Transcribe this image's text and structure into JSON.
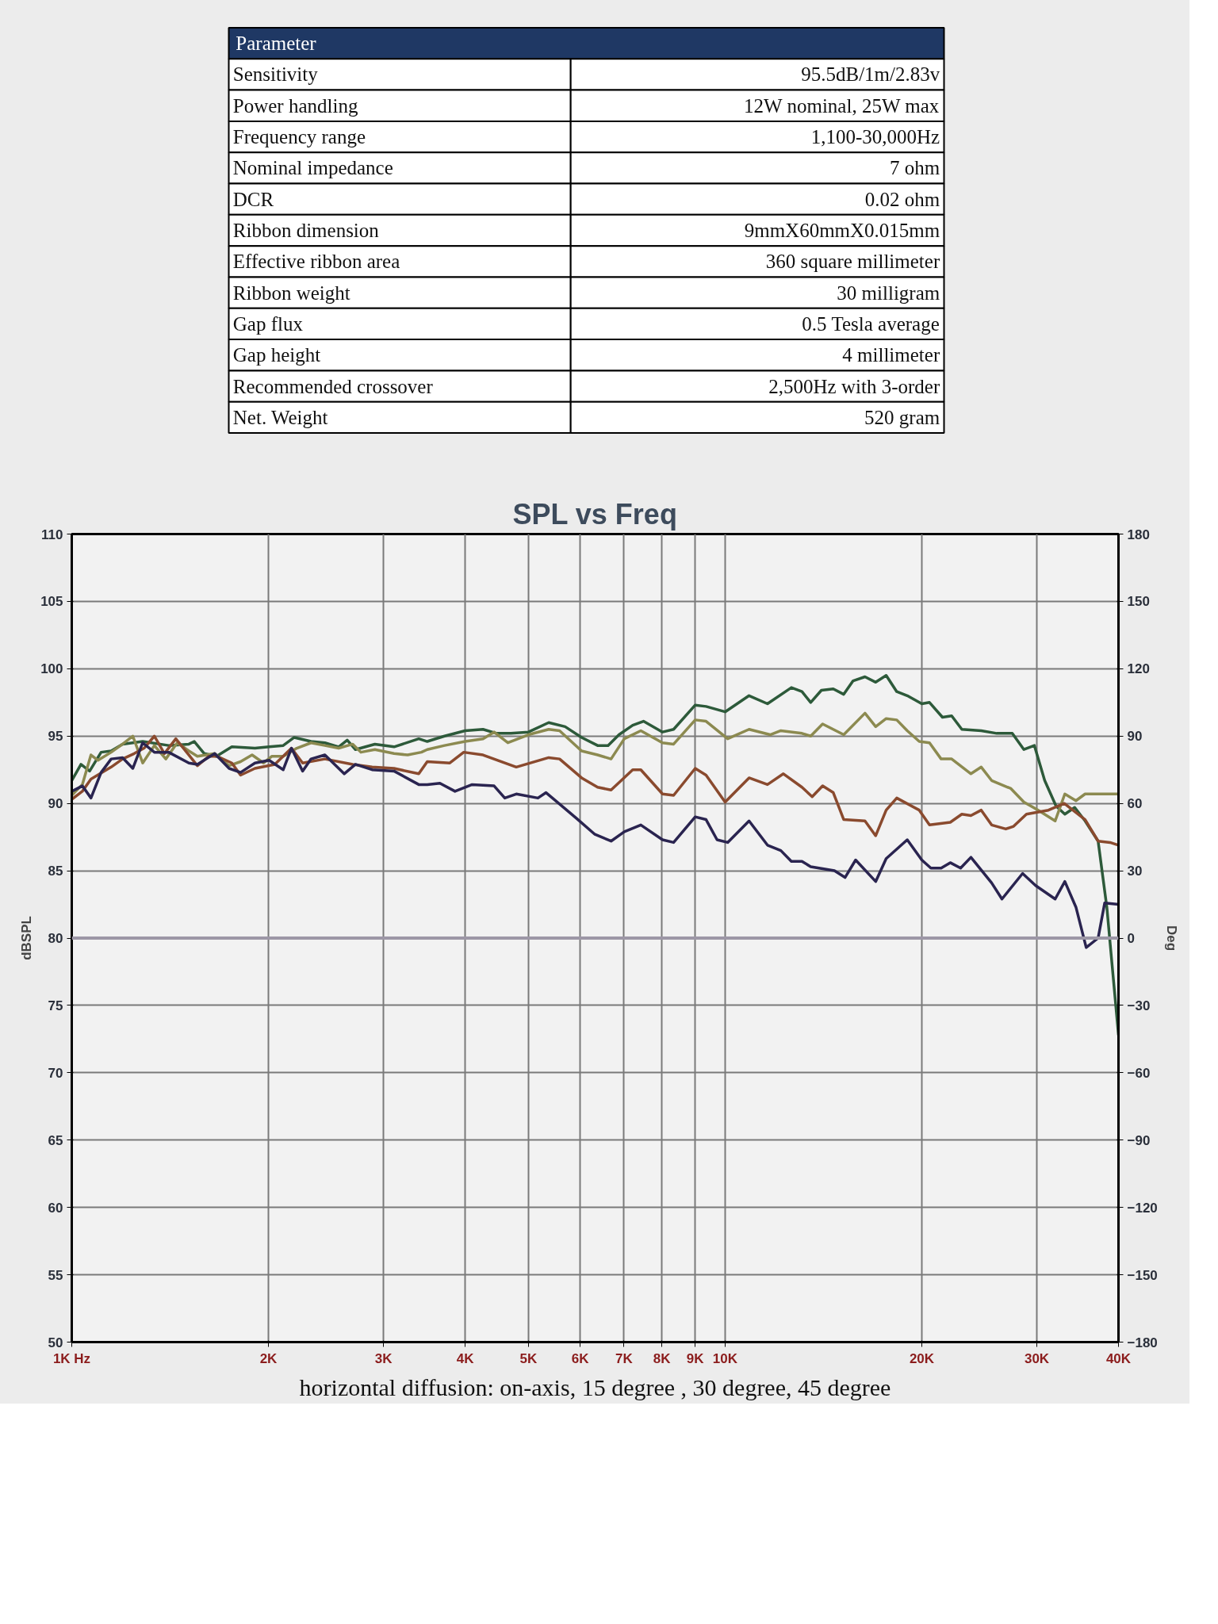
{
  "chart_data": [
    {
      "type": "other",
      "annotations": [
        "Parameter",
        "Sensitivity",
        "95.5dB/1m/2.83v",
        "Power handling",
        "12W nominal, 25W max",
        "Frequency range",
        "1,100-30,000Hz",
        "Nominal impedance",
        "7 ohm",
        "DCR",
        "0.02 ohm",
        "Ribbon dimension",
        "9mmX60mmX0.015mm",
        "Effective ribbon area",
        "360 square millimeter",
        "Ribbon weight",
        "30 milligram",
        "Gap flux",
        "0.5 Tesla average",
        "Gap height",
        "4 millimeter",
        "Recommended crossover",
        "2,500Hz with 3-order",
        "Net. Weight",
        "520 gram"
      ]
    },
    {
      "type": "line",
      "title": "SPL vs Freq",
      "ylabel": "dBSPL",
      "y2label": "Deg",
      "annotations": [
        "horizontal diffusion: on-axis, 15 degree , 30 degree, 45 degree"
      ],
      "log": "x",
      "grid": true,
      "xlim": [
        1000,
        40000
      ],
      "xticks": [
        {
          "value": 1000,
          "label": "1K Hz"
        },
        {
          "value": 2000,
          "label": "2K"
        },
        {
          "value": 3000,
          "label": "3K"
        },
        {
          "value": 4000,
          "label": "4K"
        },
        {
          "value": 5000,
          "label": "5K"
        },
        {
          "value": 6000,
          "label": "6K"
        },
        {
          "value": 7000,
          "label": "7K"
        },
        {
          "value": 8000,
          "label": "8K"
        },
        {
          "value": 9000,
          "label": "9K"
        },
        {
          "value": 10000,
          "label": "10K"
        },
        {
          "value": 20000,
          "label": "20K"
        },
        {
          "value": 30000,
          "label": "30K"
        },
        {
          "value": 40000,
          "label": "40K"
        }
      ],
      "ylim": [
        50,
        110
      ],
      "yticks": [
        50,
        55,
        60,
        65,
        70,
        75,
        80,
        85,
        90,
        95,
        100,
        105,
        110
      ],
      "y2lim": [
        -180,
        180
      ],
      "y2ticks": [
        -180,
        -150,
        -120,
        -90,
        -60,
        -30,
        0,
        30,
        60,
        90,
        120,
        150,
        180
      ],
      "ref_lines": [
        {
          "axis": "y2",
          "value": 0,
          "color": "#9d97a6"
        }
      ],
      "series": [
        {
          "color": "#2d5a3a",
          "x": [
            1000,
            1033,
            1065,
            1109,
            1149,
            1196,
            1284,
            1407,
            1511,
            1540,
            1595,
            1665,
            1758,
            1907,
            2005,
            2107,
            2190,
            2324,
            2440,
            2562,
            2640,
            2718,
            2910,
            3114,
            3397,
            3500,
            3720,
            4000,
            4260,
            4470,
            4700,
            5000,
            5370,
            5690,
            6030,
            6380,
            6620,
            6880,
            7220,
            7500,
            8020,
            8340,
            9000,
            9350,
            10000,
            10880,
            11610,
            12630,
            13110,
            13520,
            14040,
            14640,
            15190,
            15700,
            16370,
            17000,
            17640,
            18310,
            19000,
            20000,
            20550,
            21510,
            22220,
            23030,
            24660,
            26050,
            27510,
            28660,
            29740,
            30840,
            32100,
            33110,
            34280,
            35560,
            37230,
            38390,
            40000
          ],
          "values": [
            91.7,
            92.9,
            92.4,
            93.8,
            93.9,
            94.4,
            94.6,
            94.3,
            94.4,
            94.6,
            93.7,
            93.5,
            94.2,
            94.1,
            94.2,
            94.3,
            94.9,
            94.6,
            94.5,
            94.2,
            94.7,
            94.0,
            94.4,
            94.2,
            94.8,
            94.6,
            95.0,
            95.4,
            95.5,
            95.2,
            95.2,
            95.3,
            96.0,
            95.7,
            94.9,
            94.3,
            94.3,
            95.1,
            95.8,
            96.1,
            95.3,
            95.5,
            97.3,
            97.2,
            96.8,
            98.0,
            97.4,
            98.6,
            98.3,
            97.5,
            98.4,
            98.5,
            98.1,
            99.1,
            99.4,
            99.0,
            99.5,
            98.3,
            98.0,
            97.4,
            97.5,
            96.4,
            96.5,
            95.5,
            95.4,
            95.2,
            95.2,
            94.0,
            94.3,
            91.7,
            89.8,
            89.2,
            89.7,
            88.7,
            87.2,
            82.3,
            72.8
          ]
        },
        {
          "color": "#8c8a50",
          "x": [
            1000,
            1038,
            1070,
            1097,
            1149,
            1196,
            1240,
            1284,
            1338,
            1393,
            1450,
            1511,
            1557,
            1655,
            1741,
            1813,
            1888,
            1966,
            2025,
            2107,
            2210,
            2324,
            2440,
            2562,
            2692,
            2770,
            2910,
            3114,
            3267,
            3428,
            3500,
            3720,
            4000,
            4260,
            4430,
            4650,
            5000,
            5370,
            5580,
            6030,
            6380,
            6690,
            7010,
            7430,
            8020,
            8340,
            9000,
            9350,
            10090,
            10880,
            11720,
            12170,
            13110,
            13520,
            14100,
            15190,
            16370,
            17000,
            17640,
            18310,
            19000,
            19820,
            20550,
            21410,
            22220,
            23780,
            24660,
            25580,
            27380,
            28660,
            30140,
            32000,
            33110,
            34430,
            35560,
            40000
          ],
          "values": [
            90.6,
            91.4,
            93.6,
            93.2,
            93.8,
            94.4,
            95.0,
            93.0,
            94.3,
            93.3,
            94.5,
            93.9,
            93.5,
            93.7,
            92.8,
            93.1,
            93.6,
            93.0,
            93.5,
            93.5,
            94.1,
            94.5,
            94.3,
            94.1,
            94.4,
            93.8,
            94.0,
            93.7,
            93.6,
            93.8,
            94.0,
            94.3,
            94.6,
            94.8,
            95.3,
            94.5,
            95.1,
            95.5,
            95.4,
            93.9,
            93.6,
            93.3,
            94.8,
            95.4,
            94.5,
            94.4,
            96.2,
            96.1,
            94.8,
            95.5,
            95.1,
            95.4,
            95.2,
            95.0,
            95.9,
            95.1,
            96.7,
            95.7,
            96.3,
            96.2,
            95.4,
            94.6,
            94.5,
            93.3,
            93.3,
            92.2,
            92.7,
            91.7,
            91.1,
            90.1,
            89.5,
            88.7,
            90.7,
            90.2,
            90.7,
            90.7
          ]
        },
        {
          "color": "#8a4a2e",
          "x": [
            1000,
            1038,
            1070,
            1149,
            1196,
            1246,
            1290,
            1338,
            1386,
            1443,
            1511,
            1557,
            1621,
            1670,
            1758,
            1813,
            1907,
            2045,
            2169,
            2256,
            2440,
            2692,
            2882,
            3114,
            3397,
            3500,
            3790,
            3980,
            4260,
            4790,
            5370,
            5580,
            6030,
            6380,
            6690,
            7220,
            7430,
            8020,
            8340,
            9000,
            9350,
            10000,
            10880,
            11610,
            12280,
            13110,
            13590,
            14100,
            14640,
            15190,
            16370,
            17000,
            17640,
            18310,
            19820,
            20550,
            22110,
            23030,
            23780,
            24660,
            25580,
            26890,
            27640,
            28920,
            31250,
            33040,
            35560,
            37230,
            38830,
            40000
          ],
          "values": [
            90.3,
            90.9,
            91.8,
            92.7,
            93.3,
            93.7,
            94.1,
            95.0,
            93.7,
            94.8,
            93.6,
            92.8,
            93.5,
            93.5,
            93.0,
            92.1,
            92.6,
            92.9,
            94.1,
            93.0,
            93.3,
            92.9,
            92.7,
            92.6,
            92.2,
            93.1,
            93.0,
            93.8,
            93.6,
            92.7,
            93.4,
            93.3,
            91.9,
            91.2,
            91.0,
            92.5,
            92.5,
            90.7,
            90.6,
            92.6,
            92.1,
            90.1,
            91.9,
            91.4,
            92.2,
            91.2,
            90.5,
            91.3,
            90.8,
            88.8,
            88.7,
            87.6,
            89.5,
            90.4,
            89.5,
            88.4,
            88.6,
            89.2,
            89.1,
            89.5,
            88.4,
            88.1,
            88.3,
            89.2,
            89.5,
            90.0,
            88.8,
            87.2,
            87.1,
            86.9
          ]
        },
        {
          "color": "#2a2450",
          "x": [
            1000,
            1038,
            1070,
            1109,
            1149,
            1196,
            1240,
            1284,
            1338,
            1407,
            1511,
            1557,
            1655,
            1741,
            1813,
            1907,
            2005,
            2107,
            2169,
            2256,
            2324,
            2440,
            2612,
            2718,
            2882,
            3114,
            3397,
            3500,
            3660,
            3860,
            4100,
            4430,
            4600,
            4790,
            5170,
            5320,
            5920,
            6320,
            6690,
            7010,
            7430,
            8020,
            8340,
            9000,
            9350,
            9720,
            10090,
            10880,
            11610,
            12170,
            12630,
            13110,
            13520,
            14700,
            15260,
            15840,
            17000,
            17640,
            19000,
            20000,
            20650,
            21410,
            22110,
            22930,
            23780,
            25580,
            26530,
            28530,
            29870,
            32000,
            33110,
            34430,
            35700,
            37230,
            38100,
            40000
          ],
          "values": [
            90.9,
            91.3,
            90.4,
            92.3,
            93.3,
            93.4,
            92.6,
            94.5,
            93.8,
            93.8,
            93.0,
            92.9,
            93.7,
            92.6,
            92.3,
            93.0,
            93.2,
            92.5,
            94.1,
            92.4,
            93.3,
            93.6,
            92.2,
            92.9,
            92.5,
            92.4,
            91.4,
            91.4,
            91.5,
            90.9,
            91.4,
            91.3,
            90.4,
            90.7,
            90.4,
            90.8,
            88.9,
            87.7,
            87.2,
            87.9,
            88.4,
            87.3,
            87.1,
            89.0,
            88.8,
            87.3,
            87.1,
            88.7,
            86.9,
            86.5,
            85.7,
            85.7,
            85.3,
            85.0,
            84.5,
            85.8,
            84.2,
            85.9,
            87.3,
            85.8,
            85.2,
            85.2,
            85.6,
            85.2,
            86.0,
            84.1,
            82.9,
            84.8,
            83.9,
            82.9,
            84.2,
            82.3,
            79.3,
            80.0,
            82.6,
            82.5
          ]
        }
      ]
    }
  ]
}
